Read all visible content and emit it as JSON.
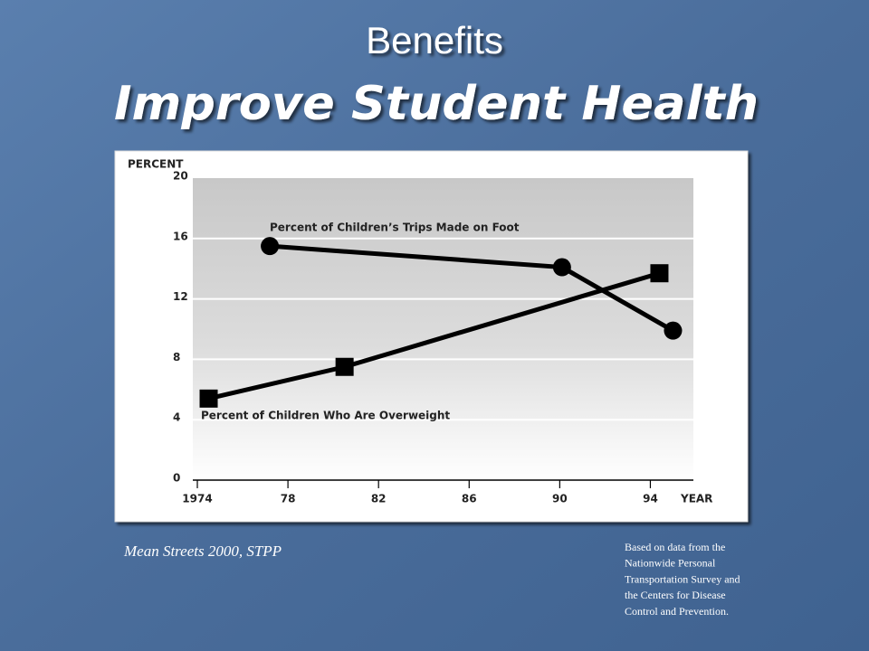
{
  "title": "Benefits",
  "subtitle": "Improve Student Health",
  "chart_data": {
    "type": "line",
    "ylabel": "PERCENT",
    "xlabel": "YEAR",
    "xlim": [
      1973.8,
      1995.9
    ],
    "ylim": [
      0,
      20
    ],
    "xticks": [
      1974,
      {
        "value": 1978,
        "label": "78"
      },
      {
        "value": 1982,
        "label": "82"
      },
      {
        "value": 1986,
        "label": "86"
      },
      {
        "value": 1990,
        "label": "90"
      },
      {
        "value": 1994,
        "label": "94"
      }
    ],
    "yticks": [
      0,
      4,
      8,
      12,
      16,
      20
    ],
    "grid": true,
    "series": [
      {
        "name": "Percent of Children’s Trips Made on Foot",
        "color": "#000000",
        "marker": "circle",
        "x": [
          1977.2,
          1990.1,
          1995.0
        ],
        "values": [
          15.5,
          14.1,
          9.9
        ]
      },
      {
        "name": "Percent of Children Who Are Overweight",
        "color": "#000000",
        "marker": "square",
        "x": [
          1974.5,
          1980.5,
          1994.4
        ],
        "values": [
          5.4,
          7.5,
          13.7
        ]
      }
    ]
  },
  "source": "Mean Streets 2000, STPP",
  "note": [
    "Based on data from the",
    "Nationwide Personal",
    "Transportation Survey and",
    "the Centers for Disease",
    "Control and Prevention."
  ]
}
